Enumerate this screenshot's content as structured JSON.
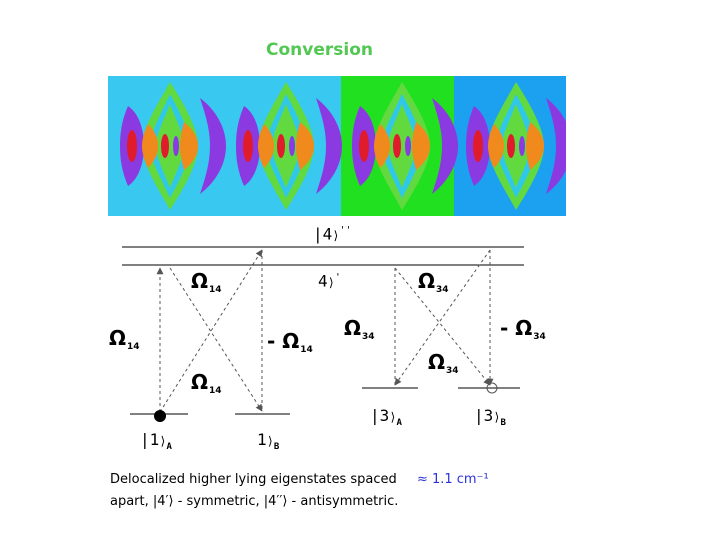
{
  "title": "Conversion",
  "colors": {
    "panel_bg_light": "#38c8f0",
    "panel_bg_green": "#20e020",
    "panel_bg_blue": "#1ca0f0",
    "contour_green": "#63d940",
    "contour_orange": "#f08a1c",
    "contour_purple": "#8a3ae0",
    "contour_red": "#e01c2c",
    "contour_cyan": "#30c8e8",
    "title_green": "#52c752",
    "caption_blue": "#2a33d6"
  },
  "levels": {
    "state_4pp": "|4",
    "state_4pp_prime": "''",
    "state_4p": "4",
    "state_4p_prime": "'",
    "state_1A": "|1",
    "state_1A_sub": "A",
    "state_1B": "1",
    "state_1B_sub": "B",
    "state_3A": "|3",
    "state_3A_sub": "A",
    "state_3B": "|3",
    "state_3B_sub": "B"
  },
  "couplings": {
    "omega_left_top": "Ω",
    "omega_left_top_sub": "14",
    "omega_left_side": "Ω",
    "omega_left_side_sub": "14",
    "omega_left_cross": "Ω",
    "omega_left_cross_sub": "14",
    "omega_left_minus": "- Ω",
    "omega_left_minus_sub": "14",
    "omega_right_top": "Ω",
    "omega_right_top_sub": "34",
    "omega_right_side": "Ω",
    "omega_right_side_sub": "34",
    "omega_right_cross": "Ω",
    "omega_right_cross_sub": "34",
    "omega_right_minus": "- Ω",
    "omega_right_minus_sub": "34"
  },
  "caption": {
    "line1": "Delocalized higher lying eigenstates spaced",
    "approx": "≈ 1.1 cm⁻¹",
    "line2": "apart, |4′⟩ - symmetric, |4′′⟩ - antisymmetric."
  }
}
